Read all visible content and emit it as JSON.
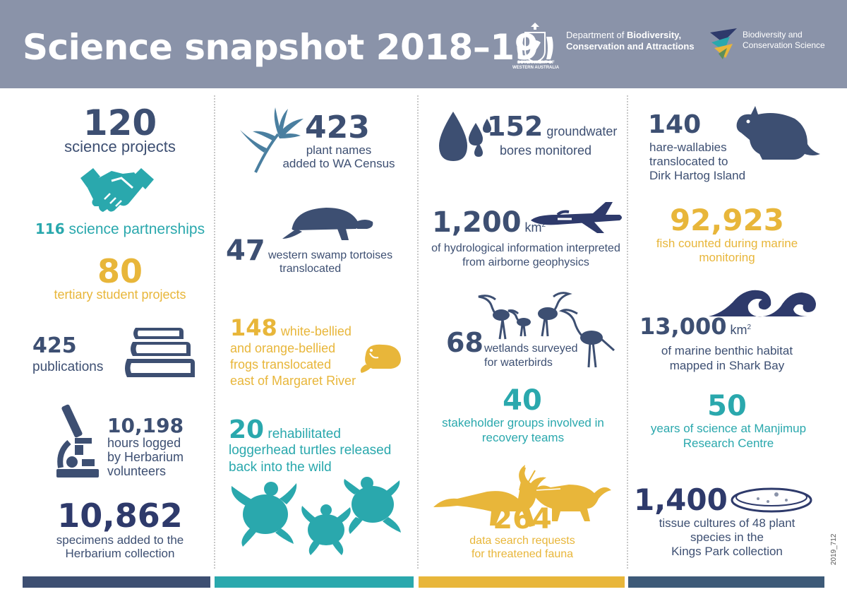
{
  "header": {
    "title": "Science snapshot 2018–19",
    "gov_line1": "GOVERNMENT OF",
    "gov_line2": "WESTERN AUSTRALIA",
    "dept_line1_plain": "Department of ",
    "dept_line1_bold": "Biodiversity,",
    "dept_line2": "Conservation and Attractions",
    "bcs_line1": "Biodiversity and",
    "bcs_line2": "Conservation Science"
  },
  "col1": {
    "projects_num": "120",
    "projects_label": "science projects",
    "partnerships_num": "116",
    "partnerships_label": "science partnerships",
    "students_num": "80",
    "students_label": "tertiary  student projects",
    "pubs_num": "425",
    "pubs_label": "publications",
    "hours_num": "10,198",
    "hours_l1": "hours logged",
    "hours_l2": "by Herbarium",
    "hours_l3": "volunteers",
    "specimens_num": "10,862",
    "specimens_l1": "specimens added to the",
    "specimens_l2": "Herbarium collection"
  },
  "col2": {
    "plants_num": "423",
    "plants_l1": "plant names",
    "plants_l2": "added to WA Census",
    "tortoise_num": "47",
    "tortoise_l1": "western swamp tortoises",
    "tortoise_l2": "translocated",
    "frogs_num": "148",
    "frogs_l1": "white-bellied",
    "frogs_l2": "and orange-bellied",
    "frogs_l3": "frogs translocated",
    "frogs_l4": "east of Margaret  River",
    "turtles_num": "20",
    "turtles_l1": "rehabilitated",
    "turtles_l2": "loggerhead turtles released",
    "turtles_l3": "back into the wild"
  },
  "col3": {
    "bores_num": "152",
    "bores_l1": "groundwater",
    "bores_l2": "bores monitored",
    "hydro_num": "1,200",
    "hydro_unit": "km",
    "hydro_sup": "2",
    "hydro_l1": "of hydrological information interpreted",
    "hydro_l2": "from airborne geophysics",
    "wetlands_num": "68",
    "wetlands_l1": "wetlands surveyed",
    "wetlands_l2": "for waterbirds",
    "stake_num": "40",
    "stake_l1": "stakeholder groups involved in",
    "stake_l2": "recovery teams",
    "search_num": "264",
    "search_l1": "data search requests",
    "search_l2": "for threatened fauna"
  },
  "col4": {
    "wallaby_num": "140",
    "wallaby_l1": "hare-wallabies",
    "wallaby_l2": "translocated to",
    "wallaby_l3": "Dirk Hartog Island",
    "fish_num": "92,923",
    "fish_l1": "fish counted during marine",
    "fish_l2": "monitoring",
    "marine_num": "13,000",
    "marine_unit": "km",
    "marine_sup": "2",
    "marine_l1": "of marine benthic habitat",
    "marine_l2": "mapped in Shark Bay",
    "years_num": "50",
    "years_l1": "years of science at Manjimup",
    "years_l2": "Research Centre",
    "tissue_num": "1,400",
    "tissue_l1": "tissue cultures of 48 plant",
    "tissue_l2": "species in the",
    "tissue_l3": "Kings Park collection"
  },
  "footer_code": "2019_712",
  "colors": {
    "navy": "#3d4f72",
    "teal": "#2aa8ad",
    "gold": "#e8b63a",
    "header": "#8a93a9"
  },
  "icons": [
    "crest-icon",
    "bcs-logo-icon",
    "handshake-icon",
    "books-icon",
    "microscope-icon",
    "flower-icon",
    "tortoise-icon",
    "frog-icon",
    "sea-turtles-icon",
    "water-drops-icon",
    "plane-icon",
    "waterbirds-icon",
    "numbat-icon",
    "hare-wallaby-icon",
    "waves-icon",
    "petri-dish-icon"
  ]
}
